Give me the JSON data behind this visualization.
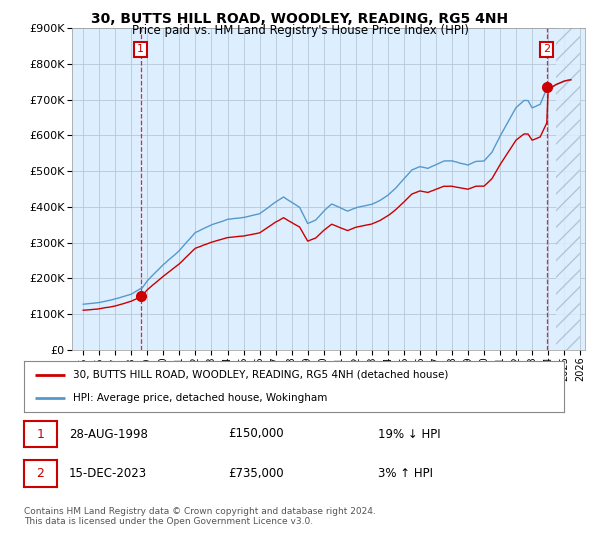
{
  "title": "30, BUTTS HILL ROAD, WOODLEY, READING, RG5 4NH",
  "subtitle": "Price paid vs. HM Land Registry's House Price Index (HPI)",
  "legend_line1": "30, BUTTS HILL ROAD, WOODLEY, READING, RG5 4NH (detached house)",
  "legend_line2": "HPI: Average price, detached house, Wokingham",
  "annotation1_date": "28-AUG-1998",
  "annotation1_price": "£150,000",
  "annotation1_hpi": "19% ↓ HPI",
  "annotation2_date": "15-DEC-2023",
  "annotation2_price": "£735,000",
  "annotation2_hpi": "3% ↑ HPI",
  "footer": "Contains HM Land Registry data © Crown copyright and database right 2024.\nThis data is licensed under the Open Government Licence v3.0.",
  "red_color": "#cc0000",
  "blue_color": "#5599cc",
  "blue_fill": "#ddeeff",
  "dashed_red": "#cc0000",
  "annotation_box_color": "#cc0000",
  "grid_color": "#bbccdd",
  "bg_color": "#ffffff",
  "plot_bg": "#ddeeff",
  "ylim_min": 0,
  "ylim_max": 900000
}
